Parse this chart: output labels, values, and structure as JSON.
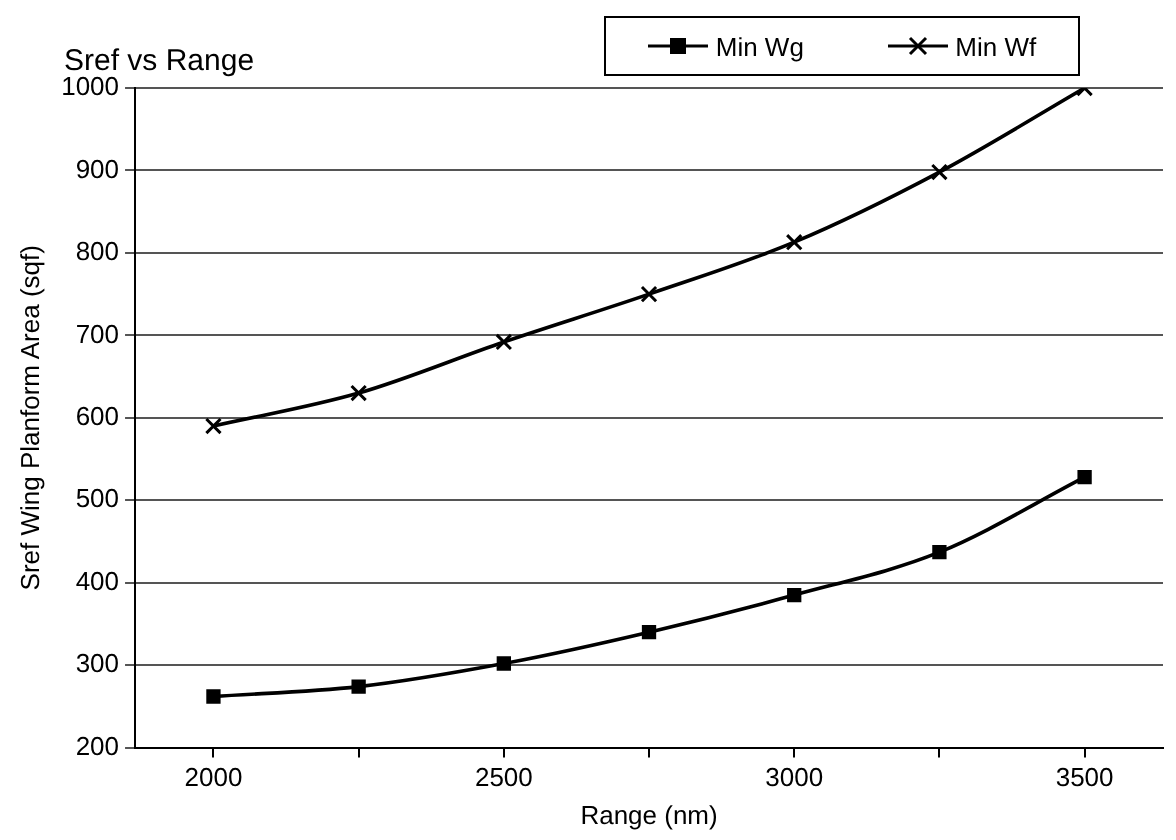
{
  "chart_data": {
    "type": "line",
    "title": "Sref vs Range",
    "xlabel": "Range (nm)",
    "ylabel": "Sref Wing Planform Area (sqf)",
    "x": [
      2000,
      2250,
      2500,
      2750,
      3000,
      3250,
      3500
    ],
    "series": [
      {
        "name": "Min Wg",
        "color": "#000000",
        "marker": "square",
        "values": [
          262,
          274,
          302,
          340,
          385,
          437,
          528
        ]
      },
      {
        "name": "Min Wf",
        "color": "#000000",
        "marker": "cross",
        "values": [
          590,
          630,
          692,
          750,
          813,
          898,
          1000
        ]
      }
    ],
    "xlim": [
      1865,
      3635
    ],
    "xticks": [
      2000,
      {
        "value": 2250,
        "label": null
      },
      2500,
      {
        "value": 2750,
        "label": null
      },
      3000,
      {
        "value": 3250,
        "label": null
      },
      3500
    ],
    "ylim": [
      200,
      1000
    ],
    "yticks": [
      200,
      300,
      400,
      500,
      600,
      700,
      800,
      900,
      1000
    ],
    "grid": "y",
    "legend": "top right",
    "line_style": "solid"
  }
}
